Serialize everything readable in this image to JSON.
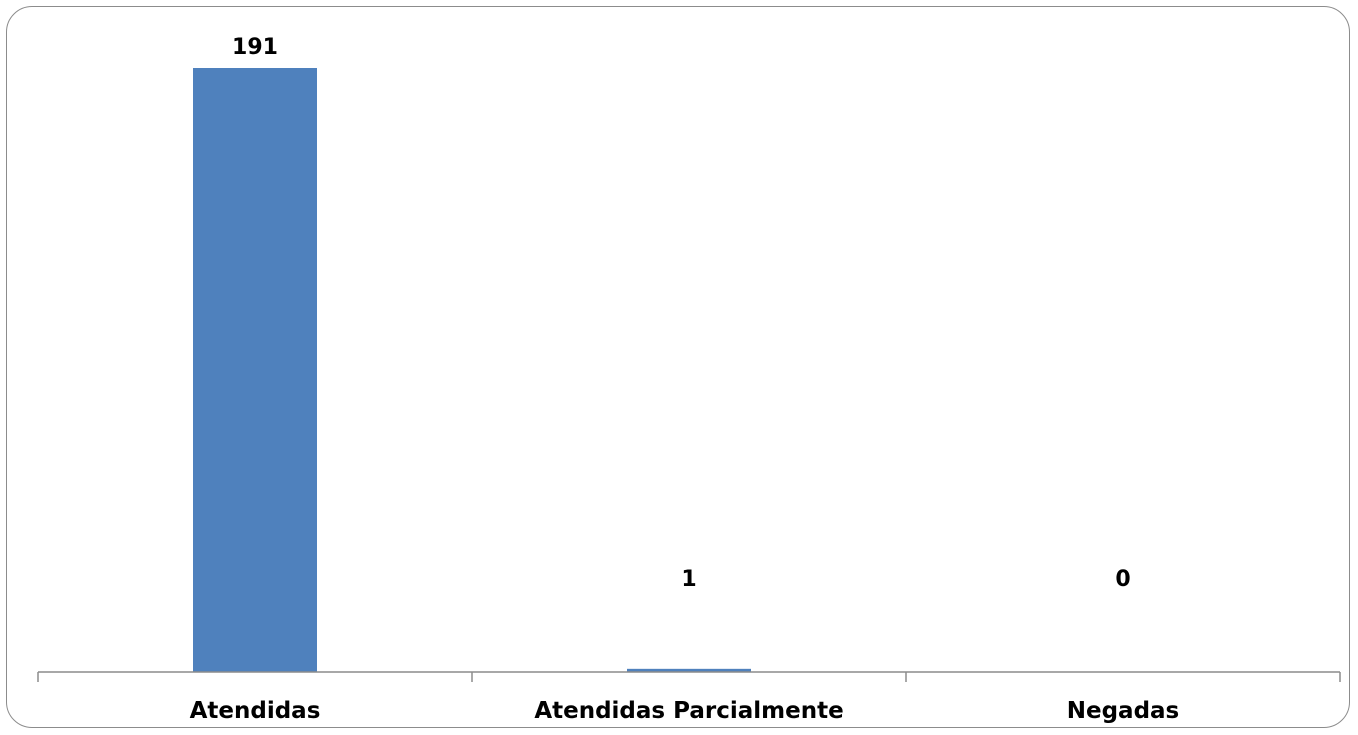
{
  "chart_data": {
    "type": "bar",
    "categories": [
      "Atendidas",
      "Atendidas Parcialmente",
      "Negadas"
    ],
    "values": [
      191,
      1,
      0
    ],
    "data_labels": [
      "191",
      "1",
      "0"
    ],
    "title": "",
    "xlabel": "",
    "ylabel": "",
    "ylim": [
      0,
      191
    ],
    "grid": false,
    "legend": "none",
    "colors": {
      "bar": "#4f81bd",
      "axis": "#8c8c8c"
    }
  }
}
